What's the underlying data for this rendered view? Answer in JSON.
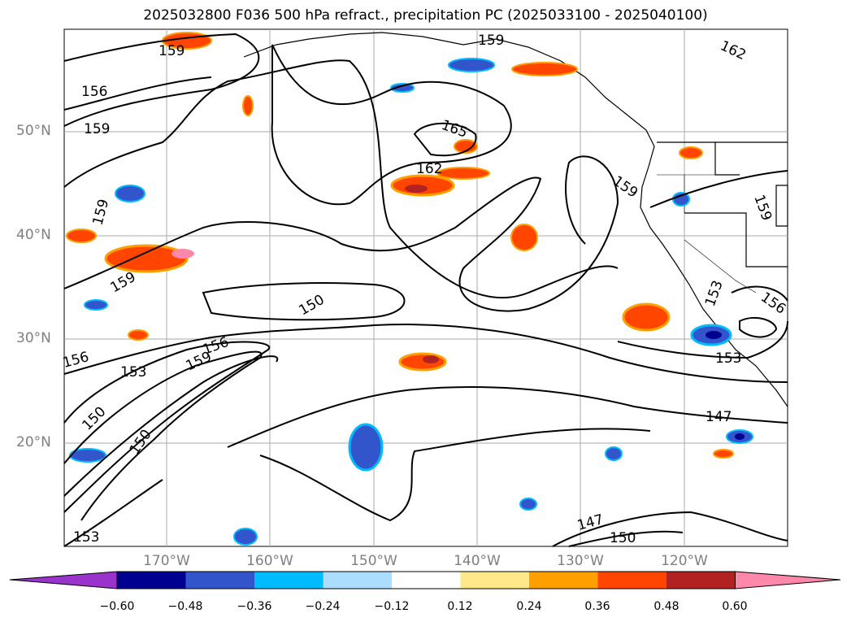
{
  "title": "2025032800 F036 500 hPa refract., precipitation PC (2025033100 - 2025040100)",
  "lat_labels": [
    "50°N",
    "40°N",
    "30°N",
    "20°N"
  ],
  "lon_labels": [
    "170°W",
    "160°W",
    "150°W",
    "140°W",
    "130°W",
    "120°W"
  ],
  "contour_labels": [
    "159",
    "156",
    "159",
    "159",
    "159",
    "150",
    "156",
    "159",
    "153",
    "150",
    "150",
    "153",
    "165",
    "162",
    "159",
    "159",
    "153",
    "156",
    "153",
    "147",
    "147",
    "150",
    "162",
    "159",
    "156"
  ],
  "colorbar": {
    "ticks": [
      "−0.60",
      "−0.48",
      "−0.36",
      "−0.24",
      "−0.12",
      "0.12",
      "0.24",
      "0.36",
      "0.48",
      "0.60"
    ],
    "colors": [
      "#9933cc",
      "#000090",
      "#3355cc",
      "#00bbff",
      "#aaddff",
      "#ffffff",
      "#ffe88a",
      "#ffa000",
      "#ff4500",
      "#b22222",
      "#ff88aa"
    ]
  }
}
